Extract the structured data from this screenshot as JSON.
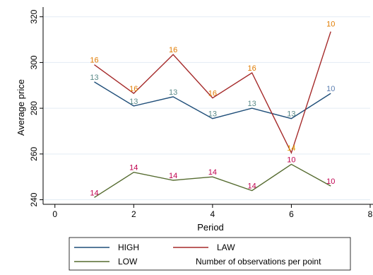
{
  "chart_data": {
    "type": "line",
    "title": "",
    "xlabel": "Period",
    "ylabel": "Average price",
    "xlim": [
      -0.3,
      8
    ],
    "ylim": [
      238,
      323
    ],
    "xticks": [
      0,
      2,
      4,
      6,
      8
    ],
    "yticks": [
      240,
      260,
      280,
      300,
      320
    ],
    "grid": "horizontal",
    "legend_position": "bottom",
    "x": [
      1,
      2,
      3,
      4,
      5,
      6,
      7
    ],
    "series": [
      {
        "name": "HIGH",
        "color": "#1f4e79",
        "label_color": "#5a8a88",
        "values": [
          291.5,
          281,
          285,
          275.5,
          280,
          275.5,
          286.5
        ],
        "labels": [
          "13",
          "13",
          "13",
          "13",
          "13",
          "13",
          "10"
        ],
        "label_dy": [
          -13,
          -13,
          -13,
          -13,
          -13,
          -13,
          -13
        ],
        "label_colors": [
          "#5a8a88",
          "#5a8a88",
          "#5a8a88",
          "#5a8a88",
          "#5a8a88",
          "#5a8a88",
          "#5a7db0"
        ]
      },
      {
        "name": "LAW",
        "color": "#a52a2a",
        "label_color": "#e07b00",
        "values": [
          299,
          286.5,
          303.5,
          284.5,
          295.5,
          260.5,
          313.5
        ],
        "labels": [
          "16",
          "16",
          "16",
          "16",
          "16",
          "14",
          "10"
        ],
        "label_dy": [
          -13,
          -13,
          -13,
          -13,
          -13,
          -13,
          -120
        ],
        "label_colors": [
          "#e07b00",
          "#e07b00",
          "#e07b00",
          "#e07b00",
          "#e07b00",
          "#e0a000",
          "#e07b00"
        ]
      },
      {
        "name": "LOW",
        "color": "#556b2f",
        "label_color": "#c0004e",
        "values": [
          241,
          252,
          248.5,
          250,
          244,
          255.5,
          246
        ],
        "labels": [
          "14",
          "14",
          "14",
          "14",
          "14",
          "10",
          "10"
        ],
        "label_dy": [
          -13,
          -13,
          -13,
          -13,
          -13,
          -13,
          -13
        ],
        "label_colors": [
          "#c0004e",
          "#c0004e",
          "#c0004e",
          "#c0004e",
          "#c0004e",
          "#c0004e",
          "#c0004e"
        ]
      }
    ],
    "legend": [
      {
        "name": "HIGH",
        "color": "#1f4e79",
        "has_line": true
      },
      {
        "name": "LAW",
        "color": "#a52a2a",
        "has_line": true
      },
      {
        "name": "LOW",
        "color": "#556b2f",
        "has_line": true
      },
      {
        "name": "Number of observations per point",
        "color": "",
        "has_line": false
      }
    ]
  }
}
